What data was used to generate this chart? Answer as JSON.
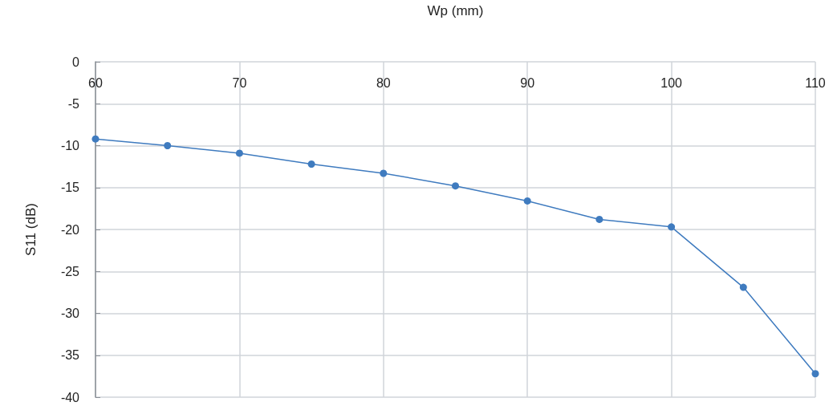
{
  "chart_data": {
    "type": "line",
    "xlabel": "Wp (mm)",
    "ylabel": "S11 (dB)",
    "x": [
      60,
      65,
      70,
      75,
      80,
      85,
      90,
      95,
      100,
      105,
      110
    ],
    "series": [
      {
        "color": "#3f7bbf",
        "values": [
          -9.2,
          -10.0,
          -10.9,
          -12.2,
          -13.3,
          -14.8,
          -16.6,
          -18.8,
          -19.7,
          -26.9,
          -37.2
        ]
      }
    ],
    "xlim": [
      60,
      110
    ],
    "xticks": [
      60,
      70,
      80,
      90,
      100,
      110
    ],
    "ylim": [
      -40,
      0
    ],
    "yticks": [
      -40,
      -35,
      -30,
      -25,
      -20,
      -15,
      -10,
      -5,
      0
    ],
    "grid": true,
    "marker": "circle",
    "line_style": "solid"
  }
}
